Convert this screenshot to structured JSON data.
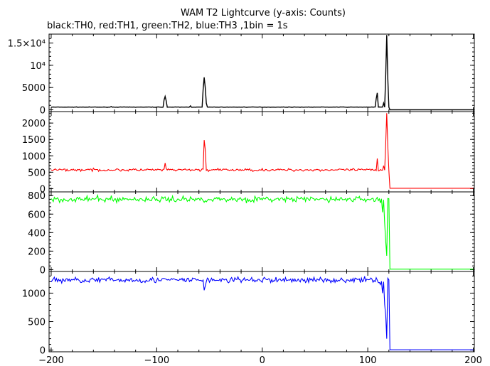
{
  "title": "WAM T2 Lightcurve (y-axis: Counts)",
  "subtitle": "black:TH0, red:TH1, green:TH2, blue:TH3 ,1bin = 1s",
  "chart_data": {
    "type": "line",
    "x_ticks": [
      -200,
      -100,
      0,
      100,
      200
    ],
    "x_tick_labels": [
      "−200",
      "−100",
      "0",
      "100",
      "200"
    ],
    "xlim": [
      -202,
      201
    ],
    "panels": [
      {
        "name": "TH0",
        "color": "#000000",
        "ylim": [
          -400,
          17000
        ],
        "y_ticks": [
          0,
          5000,
          10000,
          15000
        ],
        "y_tick_labels": [
          "0",
          "5000",
          "10⁴",
          "1.5×10⁴"
        ],
        "baseline": 600,
        "noise": 25,
        "cutoff": 120,
        "after": 0,
        "features": [
          [
            -143,
            750
          ],
          [
            -93,
            2200
          ],
          [
            -92,
            3000
          ],
          [
            -91,
            2000
          ],
          [
            -68,
            900
          ],
          [
            -56,
            4500
          ],
          [
            -55,
            7300
          ],
          [
            -54,
            5000
          ],
          [
            -53,
            1500
          ],
          [
            108,
            2500
          ],
          [
            109,
            3800
          ],
          [
            115,
            1500
          ],
          [
            117,
            8000
          ],
          [
            118,
            16800
          ],
          [
            119,
            7000
          ]
        ]
      },
      {
        "name": "TH1",
        "color": "#ff0000",
        "ylim": [
          -100,
          2350
        ],
        "y_ticks": [
          0,
          500,
          1000,
          1500,
          2000
        ],
        "y_tick_labels": [
          "0",
          "500",
          "1000",
          "1500",
          "2000"
        ],
        "baseline": 570,
        "noise": 28,
        "cutoff": 120,
        "after": 10,
        "features": [
          [
            -92,
            780
          ],
          [
            -55,
            1480
          ],
          [
            -54,
            1200
          ],
          [
            109,
            920
          ],
          [
            115,
            700
          ],
          [
            117,
            1400
          ],
          [
            118,
            2300
          ],
          [
            119,
            1300
          ]
        ]
      },
      {
        "name": "TH2",
        "color": "#00ff00",
        "ylim": [
          -20,
          840
        ],
        "y_ticks": [
          0,
          200,
          400,
          600,
          800
        ],
        "y_tick_labels": [
          "0",
          "200",
          "400",
          "600",
          "800"
        ],
        "baseline": 760,
        "noise": 22,
        "cutoff": 120,
        "after": 5,
        "features": [
          [
            112,
            720
          ],
          [
            114,
            620
          ],
          [
            116,
            500
          ],
          [
            117,
            300
          ],
          [
            118,
            150
          ]
        ]
      },
      {
        "name": "TH3",
        "color": "#0000ff",
        "ylim": [
          -30,
          1380
        ],
        "y_ticks": [
          0,
          500,
          1000
        ],
        "y_tick_labels": [
          "0",
          "500",
          "1000"
        ],
        "baseline": 1230,
        "noise": 35,
        "cutoff": 120,
        "after": 5,
        "features": [
          [
            -55,
            1050
          ],
          [
            -54,
            1120
          ],
          [
            112,
            1150
          ],
          [
            114,
            1000
          ],
          [
            116,
            800
          ],
          [
            117,
            600
          ],
          [
            118,
            200
          ]
        ]
      }
    ]
  }
}
